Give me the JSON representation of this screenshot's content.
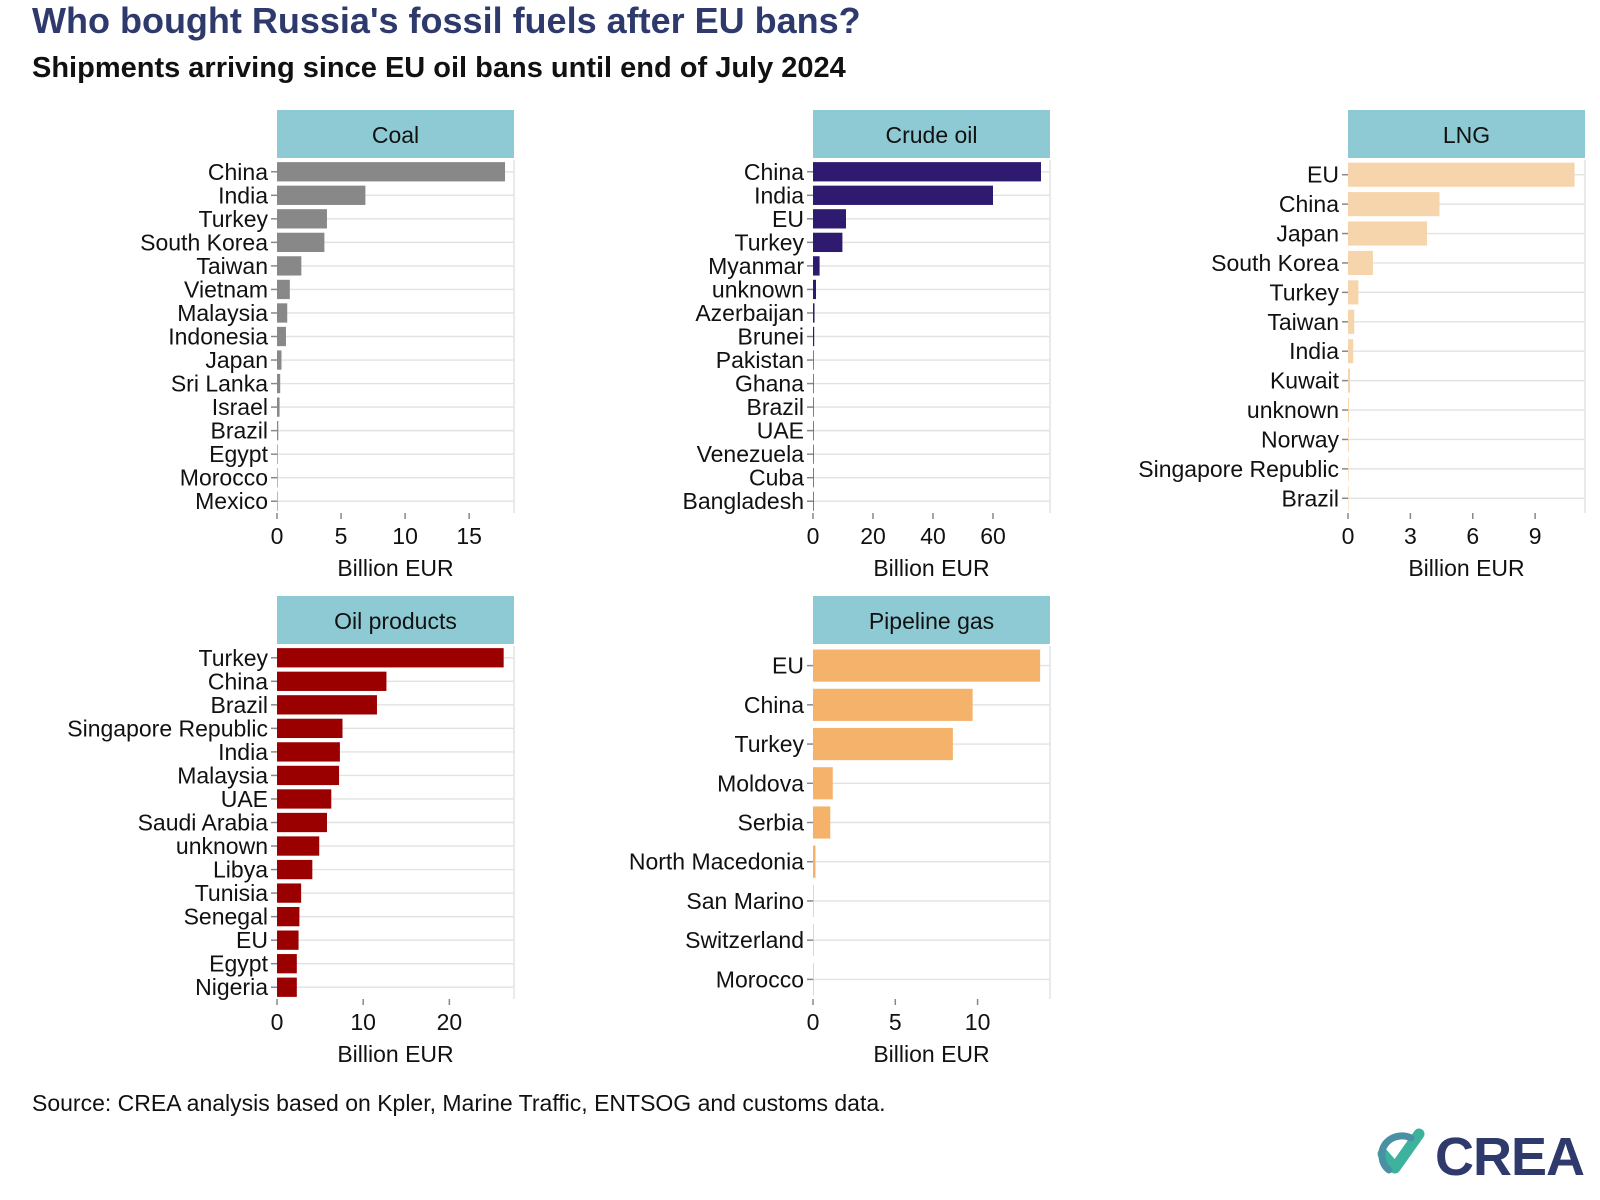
{
  "title": "Who bought Russia's fossil fuels after EU bans?",
  "subtitle": "Shipments arriving since EU oil bans until end of July 2024",
  "source": "Source: CREA analysis based on Kpler, Marine Traffic, ENTSOG and customs data.",
  "logo_text": "CREA",
  "colors": {
    "strip": "#8ecad3",
    "title": "#2e3a6b",
    "logo_blue": "#2e3a6b",
    "logo_green": "#3db39e",
    "logo_teal": "#4a90a4"
  },
  "chart_data": [
    {
      "type": "bar",
      "orientation": "horizontal",
      "title": "Coal",
      "xlabel": "Billion EUR",
      "color": "#888888",
      "xlim": [
        0,
        18.5
      ],
      "ticks": [
        0,
        5,
        10,
        15
      ],
      "categories": [
        "China",
        "India",
        "Turkey",
        "South Korea",
        "Taiwan",
        "Vietnam",
        "Malaysia",
        "Indonesia",
        "Japan",
        "Sri Lanka",
        "Israel",
        "Brazil",
        "Egypt",
        "Morocco",
        "Mexico"
      ],
      "values": [
        17.8,
        6.9,
        3.9,
        3.7,
        1.9,
        1.0,
        0.8,
        0.7,
        0.35,
        0.25,
        0.2,
        0.1,
        0.05,
        0.03,
        0.02
      ]
    },
    {
      "type": "bar",
      "orientation": "horizontal",
      "title": "Crude oil",
      "xlabel": "Billion EUR",
      "color": "#2e1a6e",
      "xlim": [
        0,
        79
      ],
      "ticks": [
        0,
        20,
        40,
        60
      ],
      "categories": [
        "China",
        "India",
        "EU",
        "Turkey",
        "Myanmar",
        "unknown",
        "Azerbaijan",
        "Brunei",
        "Pakistan",
        "Ghana",
        "Brazil",
        "UAE",
        "Venezuela",
        "Cuba",
        "Bangladesh"
      ],
      "values": [
        76,
        60,
        11,
        9.8,
        2.2,
        1.0,
        0.5,
        0.4,
        0.2,
        0.15,
        0.1,
        0.08,
        0.05,
        0.04,
        0.02
      ]
    },
    {
      "type": "bar",
      "orientation": "horizontal",
      "title": "LNG",
      "xlabel": "Billion EUR",
      "color": "#f6d5ac",
      "xlim": [
        0,
        11.4
      ],
      "ticks": [
        0,
        3,
        6,
        9
      ],
      "categories": [
        "EU",
        "China",
        "Japan",
        "South Korea",
        "Turkey",
        "Taiwan",
        "India",
        "Kuwait",
        "unknown",
        "Norway",
        "Singapore Republic",
        "Brazil"
      ],
      "values": [
        10.9,
        4.4,
        3.8,
        1.2,
        0.5,
        0.3,
        0.25,
        0.1,
        0.05,
        0.04,
        0.03,
        0.02
      ]
    },
    {
      "type": "bar",
      "orientation": "horizontal",
      "title": "Oil products",
      "xlabel": "Billion EUR",
      "color": "#9b0000",
      "xlim": [
        0,
        27.5
      ],
      "ticks": [
        0,
        10,
        20
      ],
      "categories": [
        "Turkey",
        "China",
        "Brazil",
        "Singapore Republic",
        "India",
        "Malaysia",
        "UAE",
        "Saudi Arabia",
        "unknown",
        "Libya",
        "Tunisia",
        "Senegal",
        "EU",
        "Egypt",
        "Nigeria"
      ],
      "values": [
        26.3,
        12.7,
        11.6,
        7.6,
        7.3,
        7.2,
        6.3,
        5.8,
        4.9,
        4.1,
        2.8,
        2.6,
        2.5,
        2.3,
        2.3
      ]
    },
    {
      "type": "bar",
      "orientation": "horizontal",
      "title": "Pipeline gas",
      "xlabel": "Billion EUR",
      "color": "#f5b26b",
      "xlim": [
        0,
        14.4
      ],
      "ticks": [
        0,
        5,
        10
      ],
      "categories": [
        "EU",
        "China",
        "Turkey",
        "Moldova",
        "Serbia",
        "North Macedonia",
        "San Marino",
        "Switzerland",
        "Morocco"
      ],
      "values": [
        13.8,
        9.7,
        8.5,
        1.2,
        1.05,
        0.15,
        0.03,
        0.02,
        0.01
      ]
    }
  ]
}
